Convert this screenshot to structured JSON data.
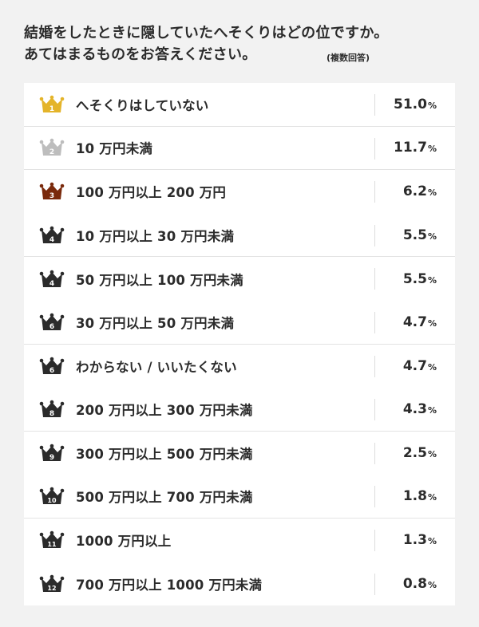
{
  "header": {
    "title_line1": "結婚をしたときに隠していたへそくりはどの位ですか。",
    "title_line2": "あてはまるものをお答えください。",
    "note": "(複数回答)"
  },
  "colors": {
    "gold": "#e4b42a",
    "silver": "#bdbdbd",
    "bronze": "#7a2a0c",
    "dark": "#2b2b2b"
  },
  "chart_data": {
    "type": "table",
    "unit": "%",
    "rows": [
      {
        "rank": "1",
        "label": "へそくりはしていない",
        "value": "51.0",
        "crown": "gold"
      },
      {
        "rank": "2",
        "label": "10 万円未満",
        "value": "11.7",
        "crown": "silver"
      },
      {
        "rank": "3",
        "label": "100 万円以上 200 万円",
        "value": "6.2",
        "crown": "bronze"
      },
      {
        "rank": "4",
        "label": "10 万円以上 30 万円未満",
        "value": "5.5",
        "crown": "dark"
      },
      {
        "rank": "4",
        "label": "50 万円以上 100 万円未満",
        "value": "5.5",
        "crown": "dark"
      },
      {
        "rank": "6",
        "label": "30 万円以上 50 万円未満",
        "value": "4.7",
        "crown": "dark"
      },
      {
        "rank": "6",
        "label": "わからない / いいたくない",
        "value": "4.7",
        "crown": "dark"
      },
      {
        "rank": "8",
        "label": "200 万円以上 300 万円未満",
        "value": "4.3",
        "crown": "dark"
      },
      {
        "rank": "9",
        "label": "300 万円以上 500 万円未満",
        "value": "2.5",
        "crown": "dark"
      },
      {
        "rank": "10",
        "label": "500 万円以上 700 万円未満",
        "value": "1.8",
        "crown": "dark"
      },
      {
        "rank": "11",
        "label": "1000 万円以上",
        "value": "1.3",
        "crown": "dark"
      },
      {
        "rank": "12",
        "label": "700 万円以上 1000 万円未満",
        "value": "0.8",
        "crown": "dark"
      }
    ]
  }
}
